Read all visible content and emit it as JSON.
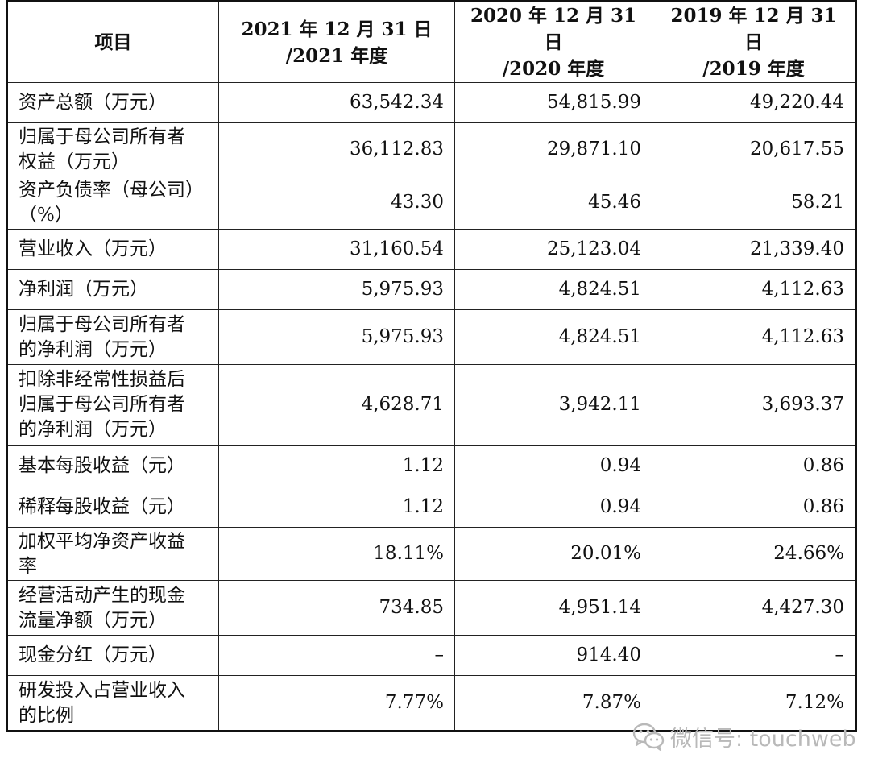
{
  "table": {
    "headers": [
      [
        "项目"
      ],
      [
        "2021 年 12 月 31 日",
        "/2021 年度"
      ],
      [
        "2020 年 12 月 31 日",
        "/2020 年度"
      ],
      [
        "2019 年 12 月 31 日",
        "/2019 年度"
      ]
    ],
    "rows": [
      {
        "label": [
          "资产总额（万元）"
        ],
        "values": [
          "63,542.34",
          "54,815.99",
          "49,220.44"
        ]
      },
      {
        "label": [
          "归属于母公司所有者",
          "权益（万元）"
        ],
        "values": [
          "36,112.83",
          "29,871.10",
          "20,617.55"
        ]
      },
      {
        "label": [
          "资产负债率（母公司）",
          "（%）"
        ],
        "values": [
          "43.30",
          "45.46",
          "58.21"
        ]
      },
      {
        "label": [
          "营业收入（万元）"
        ],
        "values": [
          "31,160.54",
          "25,123.04",
          "21,339.40"
        ]
      },
      {
        "label": [
          "净利润（万元）"
        ],
        "values": [
          "5,975.93",
          "4,824.51",
          "4,112.63"
        ]
      },
      {
        "label": [
          "归属于母公司所有者",
          "的净利润（万元）"
        ],
        "values": [
          "5,975.93",
          "4,824.51",
          "4,112.63"
        ]
      },
      {
        "label": [
          "扣除非经常性损益后",
          "归属于母公司所有者",
          "的净利润（万元）"
        ],
        "values": [
          "4,628.71",
          "3,942.11",
          "3,693.37"
        ]
      },
      {
        "label": [
          "基本每股收益（元）"
        ],
        "values": [
          "1.12",
          "0.94",
          "0.86"
        ]
      },
      {
        "label": [
          "稀释每股收益（元）"
        ],
        "values": [
          "1.12",
          "0.94",
          "0.86"
        ]
      },
      {
        "label": [
          "加权平均净资产收益",
          "率"
        ],
        "values": [
          "18.11%",
          "20.01%",
          "24.66%"
        ]
      },
      {
        "label": [
          "经营活动产生的现金",
          "流量净额（万元）"
        ],
        "values": [
          "734.85",
          "4,951.14",
          "4,427.30"
        ]
      },
      {
        "label": [
          "现金分红（万元）"
        ],
        "values": [
          "–",
          "914.40",
          "–"
        ]
      },
      {
        "label": [
          "研发投入占营业收入",
          "的比例"
        ],
        "values": [
          "7.77%",
          "7.87%",
          "7.12%"
        ]
      }
    ]
  },
  "watermark": {
    "text": "微信号: touchweb",
    "icon": "wechat-icon",
    "color": "#b9b9b9"
  }
}
